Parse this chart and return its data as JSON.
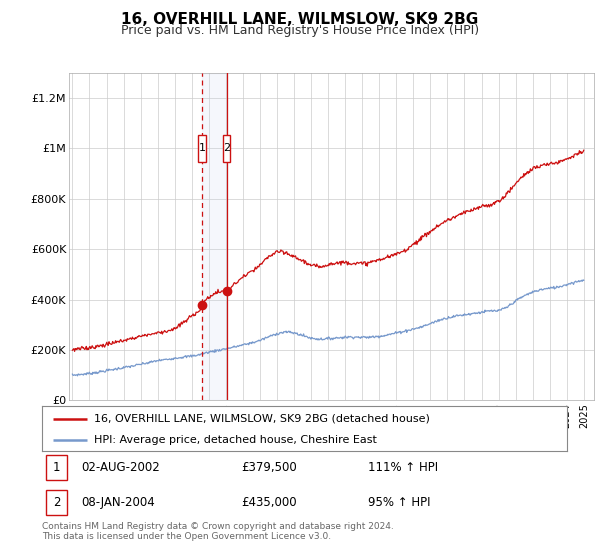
{
  "title": "16, OVERHILL LANE, WILMSLOW, SK9 2BG",
  "subtitle": "Price paid vs. HM Land Registry's House Price Index (HPI)",
  "title_fontsize": 11,
  "subtitle_fontsize": 9,
  "background_color": "#ffffff",
  "plot_bg_color": "#ffffff",
  "grid_color": "#cccccc",
  "ylim": [
    0,
    1300000
  ],
  "yticks": [
    0,
    200000,
    400000,
    600000,
    800000,
    1000000,
    1200000
  ],
  "ytick_labels": [
    "£0",
    "£200K",
    "£400K",
    "£600K",
    "£800K",
    "£1M",
    "£1.2M"
  ],
  "sale1_date_num": 2002.6,
  "sale1_price": 379500,
  "sale1_label": "1",
  "sale2_date_num": 2004.05,
  "sale2_price": 435000,
  "sale2_label": "2",
  "hpi_line_color": "#7799cc",
  "price_line_color": "#cc1111",
  "sale_marker_color": "#cc1111",
  "legend1_label": "16, OVERHILL LANE, WILMSLOW, SK9 2BG (detached house)",
  "legend2_label": "HPI: Average price, detached house, Cheshire East",
  "footnote": "Contains HM Land Registry data © Crown copyright and database right 2024.\nThis data is licensed under the Open Government Licence v3.0.",
  "xmin": 1994.8,
  "xmax": 2025.6,
  "shaded_x1": 2002.6,
  "shaded_x2": 2004.05,
  "hpi_x": [
    1995.0,
    1995.5,
    1996.0,
    1996.5,
    1997.0,
    1997.5,
    1998.0,
    1998.5,
    1999.0,
    1999.5,
    2000.0,
    2000.5,
    2001.0,
    2001.5,
    2002.0,
    2002.5,
    2003.0,
    2003.5,
    2004.0,
    2004.5,
    2005.0,
    2005.5,
    2006.0,
    2006.5,
    2007.0,
    2007.5,
    2008.0,
    2008.5,
    2009.0,
    2009.5,
    2010.0,
    2010.5,
    2011.0,
    2011.5,
    2012.0,
    2012.5,
    2013.0,
    2013.5,
    2014.0,
    2014.5,
    2015.0,
    2015.5,
    2016.0,
    2016.5,
    2017.0,
    2017.5,
    2018.0,
    2018.5,
    2019.0,
    2019.5,
    2020.0,
    2020.5,
    2021.0,
    2021.5,
    2022.0,
    2022.5,
    2023.0,
    2023.5,
    2024.0,
    2024.5,
    2025.0
  ],
  "hpi_y": [
    100000,
    103000,
    107000,
    112000,
    118000,
    124000,
    130000,
    136000,
    143000,
    150000,
    158000,
    162000,
    168000,
    172000,
    176000,
    182000,
    192000,
    198000,
    205000,
    212000,
    220000,
    228000,
    238000,
    252000,
    265000,
    272000,
    268000,
    258000,
    247000,
    243000,
    245000,
    248000,
    251000,
    252000,
    250000,
    251000,
    255000,
    260000,
    268000,
    275000,
    283000,
    292000,
    305000,
    318000,
    328000,
    335000,
    340000,
    345000,
    350000,
    355000,
    355000,
    370000,
    395000,
    415000,
    430000,
    440000,
    445000,
    450000,
    460000,
    470000,
    478000
  ],
  "price_x": [
    1995.0,
    1995.5,
    1996.0,
    1996.5,
    1997.0,
    1997.5,
    1998.0,
    1998.5,
    1999.0,
    1999.5,
    2000.0,
    2000.5,
    2001.0,
    2001.5,
    2002.0,
    2002.5,
    2002.6,
    2003.0,
    2003.5,
    2004.0,
    2004.05,
    2004.5,
    2005.0,
    2005.5,
    2006.0,
    2006.5,
    2007.0,
    2007.5,
    2008.0,
    2008.5,
    2009.0,
    2009.5,
    2010.0,
    2010.5,
    2011.0,
    2011.5,
    2012.0,
    2012.5,
    2013.0,
    2013.5,
    2014.0,
    2014.5,
    2015.0,
    2015.5,
    2016.0,
    2016.5,
    2017.0,
    2017.5,
    2018.0,
    2018.5,
    2019.0,
    2019.5,
    2020.0,
    2020.5,
    2021.0,
    2021.5,
    2022.0,
    2022.5,
    2023.0,
    2023.5,
    2024.0,
    2024.5,
    2025.0
  ],
  "price_y": [
    200000,
    205000,
    210000,
    215000,
    222000,
    230000,
    238000,
    246000,
    255000,
    262000,
    268000,
    275000,
    283000,
    308000,
    335000,
    360000,
    379500,
    410000,
    430000,
    432000,
    435000,
    460000,
    490000,
    510000,
    535000,
    570000,
    590000,
    585000,
    570000,
    555000,
    535000,
    530000,
    540000,
    545000,
    548000,
    545000,
    542000,
    548000,
    558000,
    568000,
    580000,
    595000,
    620000,
    645000,
    670000,
    695000,
    715000,
    730000,
    745000,
    755000,
    770000,
    775000,
    790000,
    820000,
    860000,
    895000,
    920000,
    930000,
    940000,
    945000,
    960000,
    975000,
    990000
  ]
}
